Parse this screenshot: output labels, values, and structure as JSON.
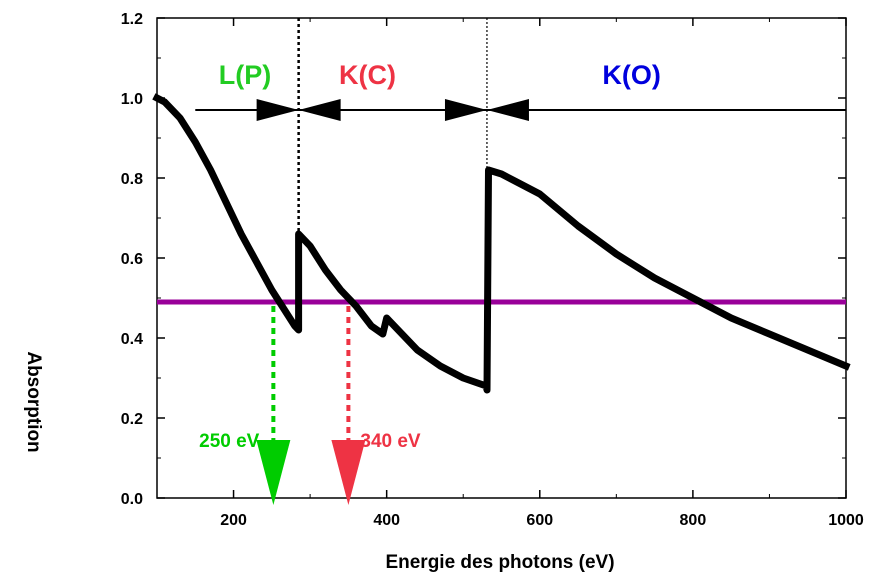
{
  "chart_data": {
    "type": "line",
    "xlabel": "Energie des photons (eV)",
    "ylabel": "Absorption",
    "xlim": [
      100,
      1000
    ],
    "ylim": [
      0,
      1.2
    ],
    "x_ticks": [
      200,
      400,
      600,
      800,
      1000
    ],
    "x_tick_labels": [
      "200",
      "400",
      "600",
      "800",
      "1000"
    ],
    "y_ticks": [
      0,
      0.2,
      0.4,
      0.6,
      0.8,
      1.0,
      1.2
    ],
    "y_tick_labels": [
      "0.0",
      "0.2",
      "0.4",
      "0.6",
      "0.8",
      "1.0",
      "1.2"
    ],
    "grid": false,
    "curve": {
      "color": "#000000",
      "points": [
        [
          100,
          1.0
        ],
        [
          110,
          0.99
        ],
        [
          130,
          0.95
        ],
        [
          150,
          0.89
        ],
        [
          170,
          0.82
        ],
        [
          190,
          0.74
        ],
        [
          210,
          0.66
        ],
        [
          230,
          0.59
        ],
        [
          250,
          0.52
        ],
        [
          265,
          0.475
        ],
        [
          280,
          0.43
        ],
        [
          285,
          0.42
        ],
        [
          285,
          0.66
        ],
        [
          300,
          0.63
        ],
        [
          320,
          0.57
        ],
        [
          340,
          0.52
        ],
        [
          360,
          0.48
        ],
        [
          380,
          0.43
        ],
        [
          395,
          0.41
        ],
        [
          400,
          0.45
        ],
        [
          420,
          0.41
        ],
        [
          440,
          0.37
        ],
        [
          470,
          0.33
        ],
        [
          500,
          0.3
        ],
        [
          530,
          0.28
        ],
        [
          531,
          0.27
        ],
        [
          533,
          0.82
        ],
        [
          550,
          0.81
        ],
        [
          570,
          0.79
        ],
        [
          600,
          0.76
        ],
        [
          650,
          0.68
        ],
        [
          700,
          0.61
        ],
        [
          750,
          0.55
        ],
        [
          800,
          0.5
        ],
        [
          850,
          0.45
        ],
        [
          900,
          0.41
        ],
        [
          950,
          0.37
        ],
        [
          1000,
          0.33
        ]
      ]
    },
    "edges": [
      {
        "label": "L(P)",
        "color": "#22cc22"
      },
      {
        "label": "K(C)",
        "color": "#ee3344"
      },
      {
        "label": "K(O)",
        "color": "#0000dd"
      }
    ],
    "edge_lines_x": [
      285,
      531
    ],
    "range_arrow": {
      "y": 0.97,
      "x_start": 150,
      "x_end": 1000
    },
    "threshold_line": {
      "y": 0.49,
      "color": "#990099"
    },
    "markers": [
      {
        "label": "250 eV",
        "x": 252,
        "color": "#00cc00"
      },
      {
        "label": "340 eV",
        "x": 350,
        "color": "#ee3344"
      }
    ]
  }
}
